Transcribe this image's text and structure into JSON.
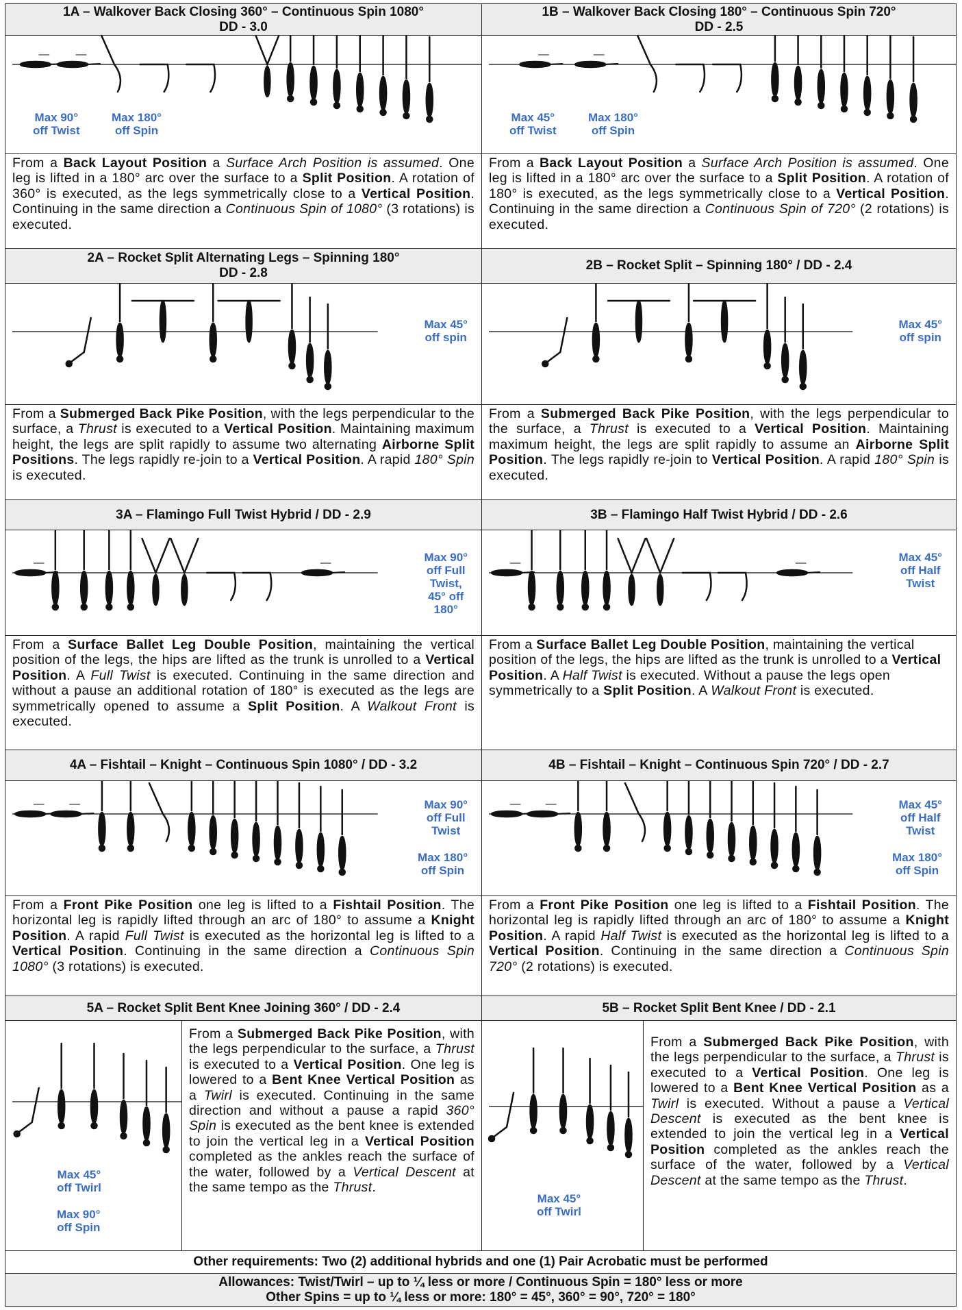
{
  "sections": [
    {
      "cells": [
        {
          "title": "1A – Walkover Back Closing 360° – Continuous Spin 1080°",
          "subtitle": "DD - 3.0",
          "notes": [
            "Max 90°\noff Twist",
            "Max 180°\noff Spin"
          ],
          "description": [
            [
              "p",
              "From a "
            ],
            [
              "b",
              "Back Layout Position"
            ],
            [
              "p",
              " a "
            ],
            [
              "i",
              "Surface Arch Position is assumed"
            ],
            [
              "p",
              ". One leg is lifted in a 180° arc over the surface to a "
            ],
            [
              "b",
              "Split Position"
            ],
            [
              "p",
              ". A rotation of 360° is executed, as the legs symmetrically close to a "
            ],
            [
              "b",
              "Vertical Position"
            ],
            [
              "p",
              ". Continuing in the same direction a "
            ],
            [
              "i",
              "Continuous Spin of 1080°"
            ],
            [
              "p",
              " (3 rotations) is executed."
            ]
          ]
        },
        {
          "title": "1B – Walkover Back Closing 180° – Continuous Spin 720°",
          "subtitle": "DD - 2.5",
          "notes": [
            "Max 45°\noff Twist",
            "Max 180°\noff Spin"
          ],
          "description": [
            [
              "p",
              "From a "
            ],
            [
              "b",
              "Back Layout Position"
            ],
            [
              "p",
              " a "
            ],
            [
              "i",
              "Surface Arch Position is assumed"
            ],
            [
              "p",
              ". One leg is lifted in a 180° arc over the surface to a "
            ],
            [
              "b",
              "Split Position"
            ],
            [
              "p",
              ". A rotation of 180° is executed, as the legs symmetrically close to a "
            ],
            [
              "b",
              "Vertical Position"
            ],
            [
              "p",
              ". Continuing in the same direction a "
            ],
            [
              "i",
              "Continuous Spin of 720°"
            ],
            [
              "p",
              " (2 rotations) is executed."
            ]
          ]
        }
      ]
    },
    {
      "cells": [
        {
          "title": "2A – Rocket Split Alternating Legs – Spinning 180°",
          "subtitle": "DD - 2.8",
          "notes": [
            "Max 45°\noff spin"
          ],
          "description": [
            [
              "p",
              "From a "
            ],
            [
              "b",
              "Submerged Back Pike Position"
            ],
            [
              "p",
              ", with the legs perpendicular to the surface, a "
            ],
            [
              "i",
              "Thrust"
            ],
            [
              "p",
              " is executed to a "
            ],
            [
              "b",
              "Vertical Position"
            ],
            [
              "p",
              ". Maintaining maximum height, the legs are split rapidly to assume two alternating "
            ],
            [
              "b",
              "Airborne Split Positions"
            ],
            [
              "p",
              ". The legs rapidly re-join to a "
            ],
            [
              "b",
              "Vertical Position"
            ],
            [
              "p",
              ". A rapid "
            ],
            [
              "i",
              "180° Spin"
            ],
            [
              "p",
              " is executed."
            ]
          ]
        },
        {
          "title": "2B – Rocket Split – Spinning 180° / DD - 2.4",
          "notes": [
            "Max 45°\noff spin"
          ],
          "description": [
            [
              "p",
              "From a "
            ],
            [
              "b",
              "Submerged Back Pike Position"
            ],
            [
              "p",
              ", with the legs perpendicular to the surface, a "
            ],
            [
              "i",
              "Thrust"
            ],
            [
              "p",
              " is executed to a "
            ],
            [
              "b",
              "Vertical Position"
            ],
            [
              "p",
              ". Maintaining maximum height, the legs are split rapidly to assume an "
            ],
            [
              "b",
              "Airborne Split Position"
            ],
            [
              "p",
              ". The legs rapidly re-join to "
            ],
            [
              "b",
              "Vertical Position"
            ],
            [
              "p",
              ". A rapid "
            ],
            [
              "i",
              "180° Spin"
            ],
            [
              "p",
              " is executed."
            ]
          ]
        }
      ]
    },
    {
      "cells": [
        {
          "title": "3A – Flamingo Full Twist Hybrid / DD - 2.9",
          "notes": [
            "Max 90°\noff Full\nTwist,\n45° off\n180°"
          ],
          "description": [
            [
              "p",
              "From a "
            ],
            [
              "b",
              "Surface Ballet Leg Double Position"
            ],
            [
              "p",
              ", maintaining the vertical position of the legs, the hips are lifted as the trunk is unrolled to a "
            ],
            [
              "b",
              "Vertical Position"
            ],
            [
              "p",
              ". A "
            ],
            [
              "i",
              "Full Twist"
            ],
            [
              "p",
              " is executed. Continuing in the same direction and without a pause an additional rotation of 180° is executed as the legs are symmetrically opened to assume a "
            ],
            [
              "b",
              "Split Position"
            ],
            [
              "p",
              ". A "
            ],
            [
              "i",
              "Walkout Front"
            ],
            [
              "p",
              " is executed."
            ]
          ]
        },
        {
          "title": "3B – Flamingo Half Twist Hybrid / DD - 2.6",
          "notes": [
            "Max 45°\noff Half\nTwist"
          ],
          "description": [
            [
              "p",
              "From a "
            ],
            [
              "b",
              "Surface Ballet Leg Double Position"
            ],
            [
              "p",
              ", maintaining the vertical position of the legs, the hips are lifted as the trunk is unrolled to a "
            ],
            [
              "b",
              "Vertical Position"
            ],
            [
              "p",
              ". A "
            ],
            [
              "i",
              "Half Twist"
            ],
            [
              "p",
              " is executed. Without a pause the legs open symmetrically to a "
            ],
            [
              "b",
              "Split Position"
            ],
            [
              "p",
              ". A "
            ],
            [
              "i",
              "Walkout Front"
            ],
            [
              "p",
              " is executed."
            ]
          ]
        }
      ]
    },
    {
      "cells": [
        {
          "title": "4A – Fishtail – Knight – Continuous Spin 1080° / DD - 3.2",
          "notes": [
            "Max 90°\noff Full\nTwist",
            "Max 180°\noff Spin"
          ],
          "description": [
            [
              "p",
              "From a "
            ],
            [
              "b",
              "Front Pike Position"
            ],
            [
              "p",
              " one leg is lifted to a "
            ],
            [
              "b",
              "Fishtail Position"
            ],
            [
              "p",
              ". The horizontal leg is rapidly lifted through an arc of 180° to assume a "
            ],
            [
              "b",
              "Knight Position"
            ],
            [
              "p",
              ". A rapid "
            ],
            [
              "i",
              "Full Twist"
            ],
            [
              "p",
              " is executed as the horizontal leg is lifted to a "
            ],
            [
              "b",
              "Vertical Position"
            ],
            [
              "p",
              ". Continuing in the same direction a "
            ],
            [
              "i",
              "Continuous Spin 1080°"
            ],
            [
              "p",
              " (3 rotations) is executed."
            ]
          ]
        },
        {
          "title": "4B – Fishtail – Knight – Continuous Spin 720° / DD - 2.7",
          "notes": [
            "Max 45°\noff Half\nTwist",
            "Max 180°\noff Spin"
          ],
          "description": [
            [
              "p",
              "From a "
            ],
            [
              "b",
              "Front Pike Position"
            ],
            [
              "p",
              " one leg is lifted to a "
            ],
            [
              "b",
              "Fishtail Position"
            ],
            [
              "p",
              ". The horizontal leg is rapidly lifted through an arc of 180° to assume a "
            ],
            [
              "b",
              "Knight Position"
            ],
            [
              "p",
              ". A rapid "
            ],
            [
              "i",
              "Half Twist"
            ],
            [
              "p",
              " is executed as the horizontal leg is lifted to a "
            ],
            [
              "b",
              "Vertical Position"
            ],
            [
              "p",
              ". Continuing in the same direction a "
            ],
            [
              "i",
              "Continuous Spin 720°"
            ],
            [
              "p",
              " (2 rotations) is executed."
            ]
          ]
        }
      ]
    },
    {
      "cells": [
        {
          "title": "5A – Rocket Split Bent Knee Joining 360° / DD - 2.4",
          "notes": [
            "Max 45°\noff Twirl",
            "Max 90°\noff Spin"
          ],
          "description": [
            [
              "p",
              "From a "
            ],
            [
              "b",
              "Submerged Back Pike Position"
            ],
            [
              "p",
              ", with the legs perpendicular to the surface, a "
            ],
            [
              "i",
              "Thrust"
            ],
            [
              "p",
              " is executed to a "
            ],
            [
              "b",
              "Vertical Position"
            ],
            [
              "p",
              ". One leg is lowered to a "
            ],
            [
              "b",
              "Bent Knee Vertical Position"
            ],
            [
              "p",
              " as a "
            ],
            [
              "i",
              "Twirl"
            ],
            [
              "p",
              " is executed. Continuing in the same direction and without a pause a rapid "
            ],
            [
              "i",
              "360° Spin"
            ],
            [
              "p",
              " is executed as the bent knee is extended to join the vertical leg in a "
            ],
            [
              "b",
              "Vertical Position"
            ],
            [
              "p",
              " completed as the ankles reach the surface of the water, followed by a "
            ],
            [
              "i",
              "Vertical Descent"
            ],
            [
              "p",
              " at the same tempo as the "
            ],
            [
              "i",
              "Thrust"
            ],
            [
              "p",
              "."
            ]
          ]
        },
        {
          "title": "5B – Rocket Split Bent Knee / DD - 2.1",
          "notes": [
            "Max 45°\noff Twirl"
          ],
          "description": [
            [
              "p",
              "From a "
            ],
            [
              "b",
              "Submerged Back Pike Position"
            ],
            [
              "p",
              ", with the legs perpendicular to the surface, a "
            ],
            [
              "i",
              "Thrust"
            ],
            [
              "p",
              " is executed to a "
            ],
            [
              "b",
              "Vertical Position"
            ],
            [
              "p",
              ". One leg is lowered to a "
            ],
            [
              "b",
              "Bent Knee Vertical Position"
            ],
            [
              "p",
              " as a "
            ],
            [
              "i",
              "Twirl"
            ],
            [
              "p",
              " is executed. Without a pause a "
            ],
            [
              "i",
              "Vertical Descent"
            ],
            [
              "p",
              " is executed as the bent knee is extended to join the vertical leg in a "
            ],
            [
              "b",
              "Vertical Position"
            ],
            [
              "p",
              " completed as the ankles reach the surface of the water, followed by a "
            ],
            [
              "i",
              "Vertical Descent"
            ],
            [
              "p",
              " at the same tempo as the "
            ],
            [
              "i",
              "Thrust"
            ],
            [
              "p",
              "."
            ]
          ]
        }
      ]
    }
  ],
  "footer": [
    [
      "Other requirements: Two (2) additional hybrids and one (1) Pair Acrobatic must be performed"
    ],
    [
      "Allowances: Twist/Twirl – up to ¼ less or more / Continuous Spin = 180° less or more",
      "Other Spins = up to ¼ less or more: 180° = 45°, 360° = 90°, 720° = 180°"
    ]
  ]
}
